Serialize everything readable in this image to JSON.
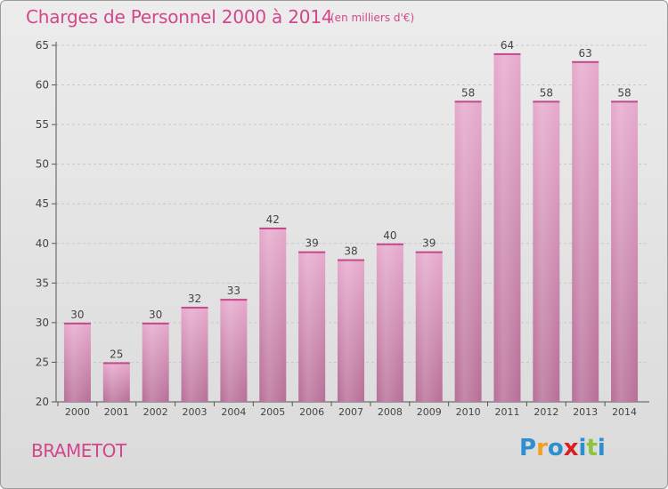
{
  "header": {
    "title": "Charges de Personnel 2000 à 2014",
    "subtitle": "(en milliers d'€)"
  },
  "footer": {
    "place": "BRAMETOT",
    "logo_letters": [
      {
        "ch": "P",
        "color": "#2e8fd0"
      },
      {
        "ch": "r",
        "color": "#f0a020"
      },
      {
        "ch": "o",
        "color": "#2e8fd0"
      },
      {
        "ch": "x",
        "color": "#d81f26"
      },
      {
        "ch": "i",
        "color": "#2e8fd0"
      },
      {
        "ch": "t",
        "color": "#8cc43f"
      },
      {
        "ch": "i",
        "color": "#2e8fd0"
      }
    ]
  },
  "chart_data": {
    "type": "bar",
    "categories": [
      "2000",
      "2001",
      "2002",
      "2003",
      "2004",
      "2005",
      "2006",
      "2007",
      "2008",
      "2009",
      "2010",
      "2011",
      "2012",
      "2013",
      "2014"
    ],
    "values": [
      30,
      25,
      30,
      32,
      33,
      42,
      39,
      38,
      40,
      39,
      58,
      64,
      58,
      63,
      58
    ],
    "ylim": [
      20,
      65
    ],
    "yticks": [
      20,
      25,
      30,
      35,
      40,
      45,
      50,
      55,
      60,
      65
    ],
    "grid": true,
    "bar_color": "#d98cb8",
    "title_color": "#d2478c"
  }
}
